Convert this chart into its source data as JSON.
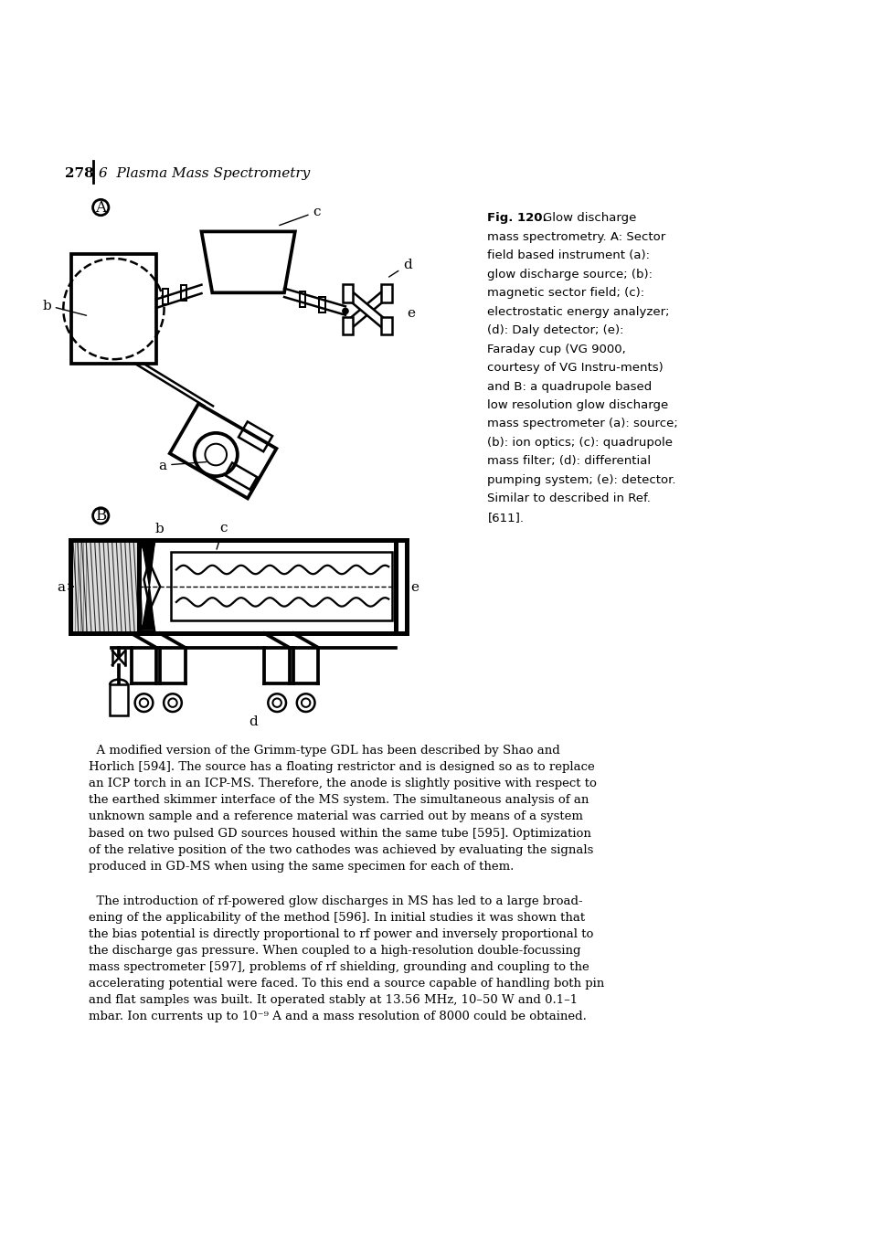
{
  "page_number": "278",
  "chapter_header": "6  Plasma Mass Spectrometry",
  "caption_lines": [
    "Glow discharge",
    "mass spectrometry. A: Sector",
    "field based instrument (a):",
    "glow discharge source; (b):",
    "magnetic sector field; (c):",
    "electrostatic energy analyzer;",
    "(d): Daly detector; (e):",
    "Faraday cup (VG 9000,",
    "courtesy of VG Instru-ments)",
    "and B: a quadrupole based",
    "low resolution glow discharge",
    "mass spectrometer (a): source;",
    "(b): ion optics; (c): quadrupole",
    "mass filter; (d): differential",
    "pumping system; (e): detector.",
    "Similar to described in Ref.",
    "[611]."
  ],
  "para1_lines": [
    "  A modified version of the Grimm-type GDL has been described by Shao and",
    "Horlich [594]. The source has a floating restrictor and is designed so as to replace",
    "an ICP torch in an ICP-MS. Therefore, the anode is slightly positive with respect to",
    "the earthed skimmer interface of the MS system. The simultaneous analysis of an",
    "unknown sample and a reference material was carried out by means of a system",
    "based on two pulsed GD sources housed within the same tube [595]. Optimization",
    "of the relative position of the two cathodes was achieved by evaluating the signals",
    "produced in GD-MS when using the same specimen for each of them."
  ],
  "para2_lines": [
    "  The introduction of rf-powered glow discharges in MS has led to a large broad-",
    "ening of the applicability of the method [596]. In initial studies it was shown that",
    "the bias potential is directly proportional to rf power and inversely proportional to",
    "the discharge gas pressure. When coupled to a high-resolution double-focussing",
    "mass spectrometer [597], problems of rf shielding, grounding and coupling to the",
    "accelerating potential were faced. To this end a source capable of handling both pin",
    "and flat samples was built. It operated stably at 13.56 MHz, 10–50 W and 0.1–1",
    "mbar. Ion currents up to 10⁻⁹ A and a mass resolution of 8000 could be obtained."
  ],
  "background_color": "#ffffff",
  "text_color": "#000000",
  "lw": 1.8
}
